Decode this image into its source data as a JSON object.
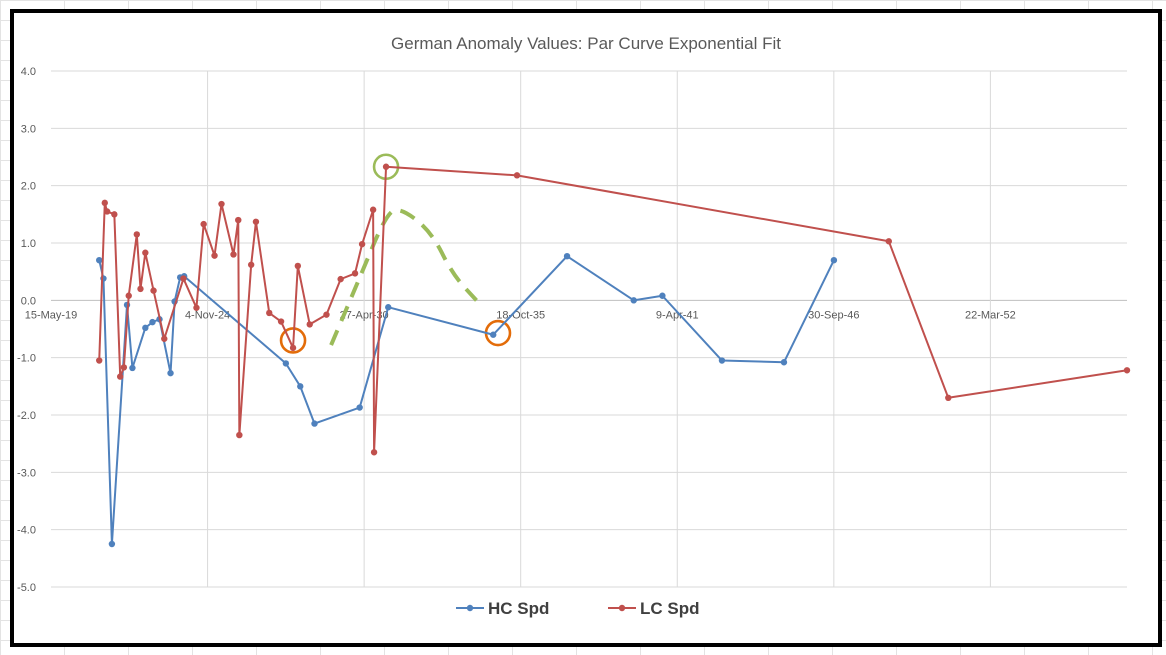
{
  "chart_data": {
    "type": "line",
    "title": "German Anomaly Values: Par Curve Exponential Fit",
    "xlabel": "",
    "ylabel": "",
    "ylim": [
      -5.0,
      4.0
    ],
    "xlim": [
      "1919-05-15",
      "1956-12-31"
    ],
    "y_ticks": [
      "4.0",
      "3.0",
      "2.0",
      "1.0",
      "0.0",
      "-1.0",
      "-2.0",
      "-3.0",
      "-4.0",
      "-5.0"
    ],
    "x_ticks": [
      {
        "label": "15-May-19",
        "date": "1919-05-15"
      },
      {
        "label": "4-Nov-24",
        "date": "1924-11-04"
      },
      {
        "label": "27-Apr-30",
        "date": "1930-04-27"
      },
      {
        "label": "18-Oct-35",
        "date": "1935-10-18"
      },
      {
        "label": "9-Apr-41",
        "date": "1941-04-09"
      },
      {
        "label": "30-Sep-46",
        "date": "1946-09-30"
      },
      {
        "label": "22-Mar-52",
        "date": "1952-03-22"
      }
    ],
    "grid": true,
    "legend": "bottom",
    "series": [
      {
        "name": "HC Spd",
        "color": "#4f81bd",
        "points": [
          [
            "1921-01-20",
            0.7
          ],
          [
            "1921-03-15",
            0.38
          ],
          [
            "1921-07-01",
            -4.25
          ],
          [
            "1922-01-10",
            -0.08
          ],
          [
            "1922-03-20",
            -1.18
          ],
          [
            "1922-09-01",
            -0.48
          ],
          [
            "1922-12-01",
            -0.38
          ],
          [
            "1923-03-01",
            -0.33
          ],
          [
            "1923-07-20",
            -1.27
          ],
          [
            "1923-09-10",
            -0.02
          ],
          [
            "1923-11-20",
            0.4
          ],
          [
            "1924-01-10",
            0.42
          ],
          [
            "1927-08-01",
            -1.1
          ],
          [
            "1928-02-01",
            -1.5
          ],
          [
            "1928-08-01",
            -2.15
          ],
          [
            "1930-03-01",
            -1.87
          ],
          [
            "1931-03-01",
            -0.12
          ],
          [
            "1934-11-01",
            -0.6
          ],
          [
            "1937-06-01",
            0.77
          ],
          [
            "1939-10-01",
            0.0
          ],
          [
            "1940-10-01",
            0.08
          ],
          [
            "1942-11-01",
            -1.05
          ],
          [
            "1945-01-01",
            -1.08
          ],
          [
            "1946-10-01",
            0.7
          ]
        ]
      },
      {
        "name": "LC Spd",
        "color": "#c0504d",
        "points": [
          [
            "1921-01-20",
            -1.05
          ],
          [
            "1921-04-01",
            1.7
          ],
          [
            "1921-05-01",
            1.55
          ],
          [
            "1921-08-01",
            1.5
          ],
          [
            "1921-10-15",
            -1.33
          ],
          [
            "1921-12-01",
            -1.17
          ],
          [
            "1922-02-01",
            0.08
          ],
          [
            "1922-05-15",
            1.15
          ],
          [
            "1922-07-01",
            0.2
          ],
          [
            "1922-09-01",
            0.83
          ],
          [
            "1922-12-15",
            0.17
          ],
          [
            "1923-05-01",
            -0.67
          ],
          [
            "1924-01-01",
            0.38
          ],
          [
            "1924-06-15",
            -0.13
          ],
          [
            "1924-09-15",
            1.33
          ],
          [
            "1925-02-01",
            0.78
          ],
          [
            "1925-05-01",
            1.68
          ],
          [
            "1925-10-01",
            0.8
          ],
          [
            "1925-12-01",
            1.4
          ],
          [
            "1925-12-15",
            -2.35
          ],
          [
            "1926-05-15",
            0.62
          ],
          [
            "1926-07-15",
            1.37
          ],
          [
            "1927-01-01",
            -0.22
          ],
          [
            "1927-06-01",
            -0.37
          ],
          [
            "1927-11-01",
            -0.83
          ],
          [
            "1928-01-01",
            0.6
          ],
          [
            "1928-06-01",
            -0.42
          ],
          [
            "1929-01-01",
            -0.25
          ],
          [
            "1929-07-01",
            0.37
          ],
          [
            "1930-01-01",
            0.47
          ],
          [
            "1930-04-01",
            0.98
          ],
          [
            "1930-08-20",
            1.58
          ],
          [
            "1930-09-01",
            -2.65
          ],
          [
            "1931-02-01",
            2.33
          ],
          [
            "1935-09-01",
            2.18
          ],
          [
            "1948-09-01",
            1.03
          ],
          [
            "1950-10-01",
            -1.7
          ],
          [
            "1956-12-31",
            -1.22
          ]
        ]
      }
    ],
    "annotations": [
      {
        "type": "circle",
        "color": "#e36c09",
        "at": [
          "1927-11-01",
          -0.7
        ]
      },
      {
        "type": "circle",
        "color": "#9bbb59",
        "at": [
          "1931-02-01",
          2.33
        ]
      },
      {
        "type": "circle",
        "color": "#e36c09",
        "at": [
          "1935-01-01",
          -0.57
        ]
      },
      {
        "type": "dashed-curve",
        "color": "#9bbb59",
        "points": [
          [
            "1929-03-01",
            -0.78
          ],
          [
            "1930-02-01",
            0.3
          ],
          [
            "1931-02-01",
            1.5
          ],
          [
            "1931-08-01",
            1.62
          ],
          [
            "1932-09-01",
            1.2
          ],
          [
            "1933-06-01",
            0.45
          ],
          [
            "1934-04-01",
            0.0
          ]
        ]
      }
    ]
  }
}
